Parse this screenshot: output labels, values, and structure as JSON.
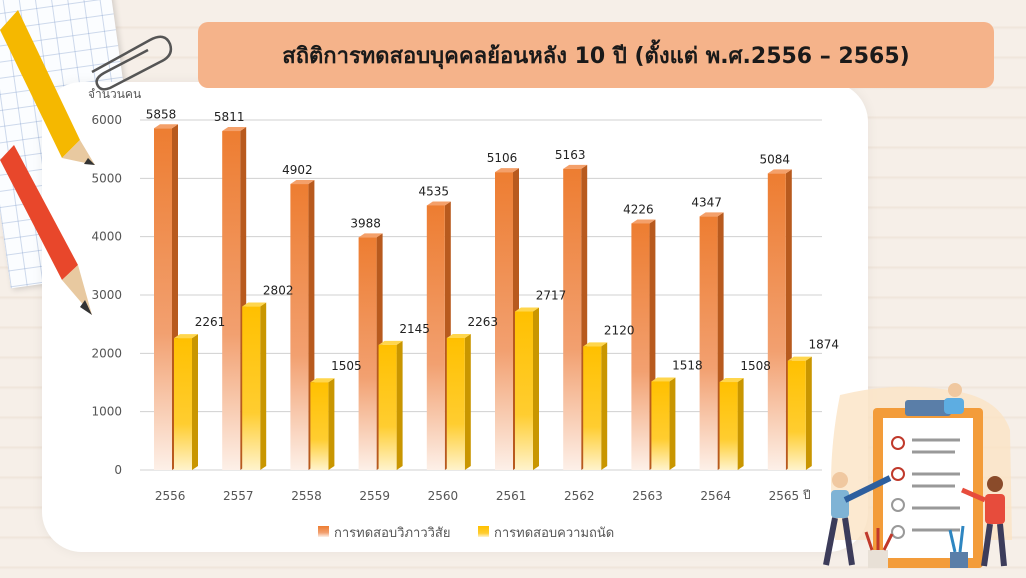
{
  "title": "สถิติการทดสอบบุคคลย้อนหลัง 10 ปี (ตั้งแต่ พ.ศ.2556 – 2565)",
  "colors": {
    "series1": "#ed7d31",
    "series2": "#ffc000",
    "banner": "#f5b38a"
  },
  "chart_data": {
    "type": "bar",
    "title": "สถิติการทดสอบบุคคลย้อนหลัง 10 ปี (ตั้งแต่ พ.ศ.2556 – 2565)",
    "ylabel": "จำนวนคน",
    "xlabel": "ปี",
    "categories": [
      "2556",
      "2557",
      "2558",
      "2559",
      "2560",
      "2561",
      "2562",
      "2563",
      "2564",
      "2565"
    ],
    "series": [
      {
        "name": "การทดสอบวิภาววิสัย",
        "values": [
          5858,
          5811,
          4902,
          3988,
          4535,
          5106,
          5163,
          4226,
          4347,
          5084
        ]
      },
      {
        "name": "การทดสอบความถนัด",
        "values": [
          2261,
          2802,
          1505,
          2145,
          2263,
          2717,
          2120,
          1518,
          1508,
          1874
        ]
      }
    ],
    "ylim": [
      0,
      6000
    ],
    "yticks": [
      0,
      1000,
      2000,
      3000,
      4000,
      5000,
      6000
    ],
    "grid": true,
    "legend": "bottom"
  }
}
